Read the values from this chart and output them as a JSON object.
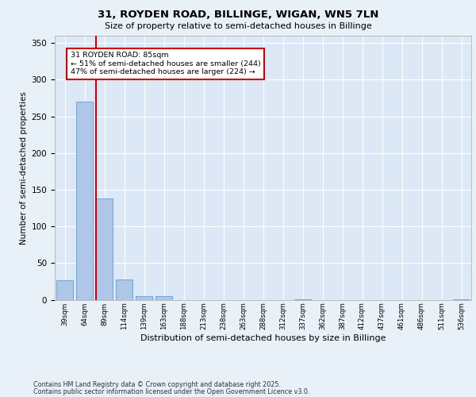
{
  "title1": "31, ROYDEN ROAD, BILLINGE, WIGAN, WN5 7LN",
  "title2": "Size of property relative to semi-detached houses in Billinge",
  "xlabel": "Distribution of semi-detached houses by size in Billinge",
  "ylabel": "Number of semi-detached properties",
  "categories": [
    "39sqm",
    "64sqm",
    "89sqm",
    "114sqm",
    "139sqm",
    "163sqm",
    "188sqm",
    "213sqm",
    "238sqm",
    "263sqm",
    "288sqm",
    "312sqm",
    "337sqm",
    "362sqm",
    "387sqm",
    "412sqm",
    "437sqm",
    "461sqm",
    "486sqm",
    "511sqm",
    "536sqm"
  ],
  "values": [
    27,
    270,
    138,
    28,
    5,
    5,
    0,
    0,
    0,
    0,
    0,
    0,
    1,
    0,
    0,
    0,
    0,
    0,
    0,
    0,
    1
  ],
  "bar_color": "#aec6e8",
  "bar_edge_color": "#5a9fd4",
  "annotation_text": "31 ROYDEN ROAD: 85sqm\n← 51% of semi-detached houses are smaller (244)\n47% of semi-detached houses are larger (224) →",
  "annotation_box_color": "#ffffff",
  "annotation_box_edge": "#cc0000",
  "vline_color": "#cc0000",
  "ylim": [
    0,
    360
  ],
  "yticks": [
    0,
    50,
    100,
    150,
    200,
    250,
    300,
    350
  ],
  "footer1": "Contains HM Land Registry data © Crown copyright and database right 2025.",
  "footer2": "Contains public sector information licensed under the Open Government Licence v3.0.",
  "bg_color": "#e8f0f8",
  "plot_bg_color": "#dce8f5",
  "grid_color": "#ffffff"
}
